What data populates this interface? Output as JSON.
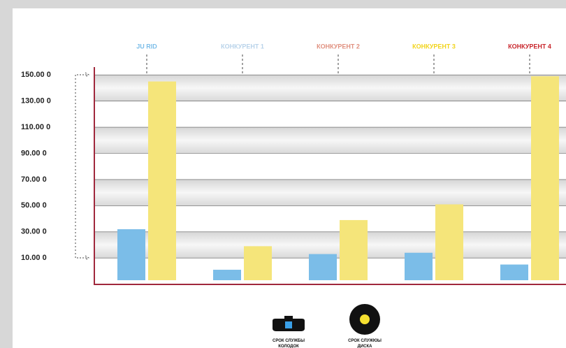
{
  "chart_data": {
    "type": "bar",
    "categories": [
      "JU RID",
      "КОНКУРЕНТ 1",
      "КОНКУРЕНТ 2",
      "КОНКУРЕНТ 3",
      "КОНКУРЕНТ 4"
    ],
    "category_colors": [
      "#7bbde8",
      "#b9d3ea",
      "#e0907f",
      "#f2d41c",
      "#c8262c"
    ],
    "series": [
      {
        "name": "СРОК СЛУЖБЫ КОЛОДОК",
        "color": "#7bbde8",
        "values": [
          32,
          1,
          13,
          14,
          5
        ]
      },
      {
        "name": "СРОК СЛУЖЮЫ ДИСКА",
        "color": "#f5e57a",
        "values": [
          145,
          19,
          39,
          51,
          149
        ]
      }
    ],
    "ylim": [
      -7,
      156
    ],
    "yticks": [
      {
        "value": 150,
        "label": "150.00 0"
      },
      {
        "value": 130,
        "label": "130.00 0"
      },
      {
        "value": 110,
        "label": "110.00 0"
      },
      {
        "value": 90,
        "label": "90.00 0"
      },
      {
        "value": 70,
        "label": "70.00 0"
      },
      {
        "value": 50,
        "label": "50.00 0"
      },
      {
        "value": 30,
        "label": "30.00 0"
      },
      {
        "value": 10,
        "label": "10.00 0"
      }
    ],
    "grid": true
  }
}
